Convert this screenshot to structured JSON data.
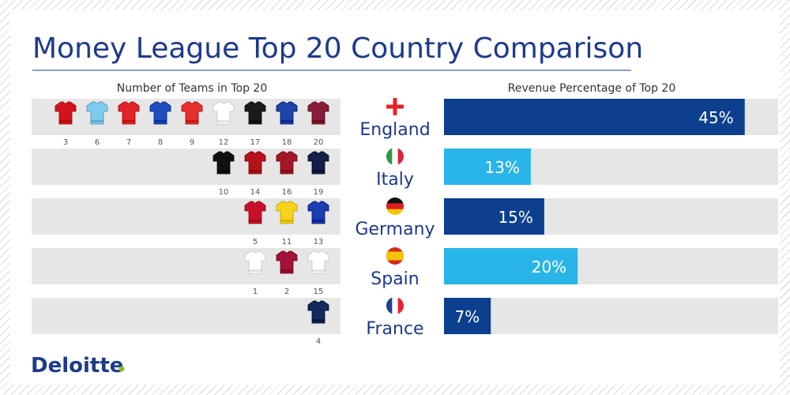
{
  "brand": {
    "name": "Deloitte",
    "dot_color": "#86bc25",
    "color": "#1d3a8a"
  },
  "chart_data": {
    "type": "bar",
    "title": "Money League Top 20 Country Comparison",
    "left_panel": {
      "subtitle": "Number of Teams in Top 20",
      "teams": [
        {
          "country": "England",
          "ranks": [
            3,
            6,
            7,
            8,
            9,
            12,
            17,
            18,
            20
          ],
          "kits": [
            "#d4141b",
            "#7fcbef",
            "#e2232a",
            "#1f4fbf",
            "#e52f2f",
            "#ffffff",
            "#1a1a1a",
            "#1b45a8",
            "#8a1c3b"
          ]
        },
        {
          "country": "Italy",
          "ranks": [
            10,
            14,
            16,
            19
          ],
          "kits": [
            "#111111",
            "#b5121b",
            "#a31628",
            "#14204a"
          ]
        },
        {
          "country": "Germany",
          "ranks": [
            5,
            11,
            13
          ],
          "kits": [
            "#c8102e",
            "#f7d417",
            "#1b3fae"
          ]
        },
        {
          "country": "Spain",
          "ranks": [
            1,
            2,
            15
          ],
          "kits": [
            "#ffffff",
            "#a3123a",
            "#ffffff"
          ]
        },
        {
          "country": "France",
          "ranks": [
            4
          ],
          "kits": [
            "#132a5e"
          ]
        }
      ]
    },
    "right_panel": {
      "subtitle": "Revenue Percentage of Top 20",
      "categories": [
        "England",
        "Italy",
        "Germany",
        "Spain",
        "France"
      ],
      "values": [
        45,
        13,
        15,
        20,
        7
      ],
      "labels": [
        "45%",
        "13%",
        "15%",
        "20%",
        "7%"
      ],
      "colors": [
        "#0d3f8f",
        "#29b5e8",
        "#0d3f8f",
        "#29b5e8",
        "#0d3f8f"
      ],
      "max": 50
    }
  }
}
